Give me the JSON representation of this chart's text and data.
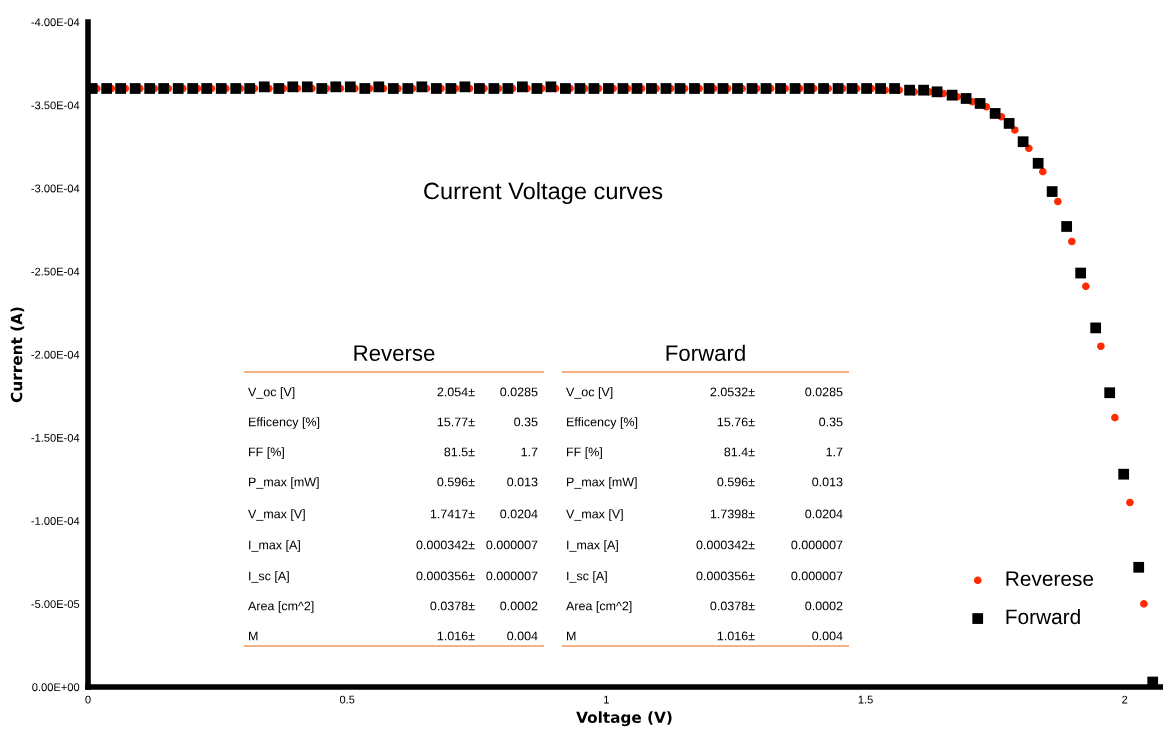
{
  "chart_data": {
    "type": "scatter",
    "title": "Current Voltage curves",
    "xlabel": "Voltage (V)",
    "ylabel": "Current (A)",
    "xlim": [
      0,
      2.07
    ],
    "xticks": [
      0,
      0.5,
      1,
      1.5,
      2
    ],
    "ylim": [
      0,
      -0.0004
    ],
    "yticks": [
      {
        "value": 0,
        "label": "0.00E+00"
      },
      {
        "value": -5e-05,
        "label": "-5.00E-05"
      },
      {
        "value": -0.0001,
        "label": "-1.00E-04"
      },
      {
        "value": -0.00015,
        "label": "-1.50E-04"
      },
      {
        "value": -0.0002,
        "label": "-2.00E-04"
      },
      {
        "value": -0.00025,
        "label": "-2.50E-04"
      },
      {
        "value": -0.0003,
        "label": "-3.00E-04"
      },
      {
        "value": -0.00035,
        "label": "-3.50E-04"
      },
      {
        "value": -0.0004,
        "label": "-4.00E-04"
      }
    ],
    "grid": false,
    "legend": "bottom right",
    "series": [
      {
        "name": "Reverese",
        "color": "#ff2a00",
        "marker": "circle",
        "x": [
          0.017,
          0.045,
          0.072,
          0.1,
          0.128,
          0.155,
          0.183,
          0.211,
          0.238,
          0.266,
          0.294,
          0.321,
          0.349,
          0.377,
          0.404,
          0.432,
          0.46,
          0.487,
          0.515,
          0.543,
          0.57,
          0.598,
          0.626,
          0.653,
          0.681,
          0.709,
          0.736,
          0.764,
          0.792,
          0.819,
          0.847,
          0.875,
          0.902,
          0.93,
          0.958,
          0.985,
          1.013,
          1.041,
          1.068,
          1.096,
          1.124,
          1.151,
          1.179,
          1.207,
          1.234,
          1.262,
          1.29,
          1.317,
          1.345,
          1.373,
          1.4,
          1.428,
          1.456,
          1.483,
          1.511,
          1.538,
          1.565,
          1.594,
          1.623,
          1.65,
          1.677,
          1.706,
          1.733,
          1.762,
          1.788,
          1.815,
          1.842,
          1.871,
          1.898,
          1.925,
          1.954,
          1.981,
          2.01,
          2.037
        ],
        "values": [
          -0.00036,
          -0.00036,
          -0.00036,
          -0.00036,
          -0.00036,
          -0.00036,
          -0.00036,
          -0.00036,
          -0.00036,
          -0.00036,
          -0.00036,
          -0.00036,
          -0.00036,
          -0.00036,
          -0.00036,
          -0.00036,
          -0.00036,
          -0.00036,
          -0.00036,
          -0.00036,
          -0.00036,
          -0.00036,
          -0.00036,
          -0.00036,
          -0.00036,
          -0.00036,
          -0.00036,
          -0.00036,
          -0.00036,
          -0.00036,
          -0.00036,
          -0.00036,
          -0.00036,
          -0.00036,
          -0.00036,
          -0.00036,
          -0.00036,
          -0.00036,
          -0.00036,
          -0.00036,
          -0.00036,
          -0.00036,
          -0.00036,
          -0.00036,
          -0.00036,
          -0.00036,
          -0.00036,
          -0.00036,
          -0.00036,
          -0.00036,
          -0.00036,
          -0.00036,
          -0.00036,
          -0.00036,
          -0.00036,
          -0.000359,
          -0.000359,
          -0.000358,
          -0.000358,
          -0.000357,
          -0.000355,
          -0.000352,
          -0.000349,
          -0.000343,
          -0.000335,
          -0.000324,
          -0.00031,
          -0.000292,
          -0.000268,
          -0.000241,
          -0.000205,
          -0.000162,
          -0.000111,
          -5e-05
        ]
      },
      {
        "name": "Forward",
        "color": "#000000",
        "marker": "square",
        "x": [
          0.008,
          0.036,
          0.063,
          0.091,
          0.119,
          0.146,
          0.174,
          0.202,
          0.229,
          0.257,
          0.285,
          0.312,
          0.34,
          0.368,
          0.395,
          0.423,
          0.451,
          0.478,
          0.506,
          0.534,
          0.561,
          0.589,
          0.617,
          0.644,
          0.672,
          0.7,
          0.727,
          0.755,
          0.783,
          0.81,
          0.838,
          0.866,
          0.893,
          0.921,
          0.949,
          0.976,
          1.004,
          1.032,
          1.059,
          1.087,
          1.115,
          1.142,
          1.17,
          1.198,
          1.225,
          1.253,
          1.281,
          1.308,
          1.336,
          1.364,
          1.391,
          1.419,
          1.447,
          1.474,
          1.502,
          1.529,
          1.556,
          1.585,
          1.612,
          1.638,
          1.667,
          1.694,
          1.721,
          1.75,
          1.777,
          1.804,
          1.833,
          1.86,
          1.888,
          1.915,
          1.944,
          1.971,
          1.998,
          2.027,
          2.054
        ],
        "values": [
          -0.00036,
          -0.00036,
          -0.00036,
          -0.00036,
          -0.00036,
          -0.00036,
          -0.00036,
          -0.00036,
          -0.00036,
          -0.00036,
          -0.00036,
          -0.00036,
          -0.000361,
          -0.00036,
          -0.000361,
          -0.000361,
          -0.00036,
          -0.000361,
          -0.000361,
          -0.00036,
          -0.000361,
          -0.00036,
          -0.00036,
          -0.000361,
          -0.00036,
          -0.00036,
          -0.000361,
          -0.00036,
          -0.00036,
          -0.00036,
          -0.000361,
          -0.00036,
          -0.000361,
          -0.00036,
          -0.00036,
          -0.00036,
          -0.00036,
          -0.00036,
          -0.00036,
          -0.00036,
          -0.00036,
          -0.00036,
          -0.00036,
          -0.00036,
          -0.00036,
          -0.00036,
          -0.00036,
          -0.00036,
          -0.00036,
          -0.00036,
          -0.00036,
          -0.00036,
          -0.00036,
          -0.00036,
          -0.00036,
          -0.00036,
          -0.00036,
          -0.000359,
          -0.000359,
          -0.000358,
          -0.000356,
          -0.000354,
          -0.000351,
          -0.000345,
          -0.000339,
          -0.000328,
          -0.000315,
          -0.000298,
          -0.000277,
          -0.000249,
          -0.000216,
          -0.000177,
          -0.000128,
          -7.2e-05,
          -3e-06
        ]
      }
    ],
    "annotations": [
      "Reverse",
      "V_oc [V]",
      "2.054±",
      "0.0285",
      "Efficency [%]",
      "15.77±",
      "0.35",
      "FF [%]",
      "81.5±",
      "1.7",
      "P_max [mW]",
      "0.596±",
      "0.013",
      "V_max [V]",
      "1.7417±",
      "0.0204",
      "I_max [A]",
      "0.000342±",
      "0.000007",
      "I_sc [A]",
      "0.000356±",
      "0.000007",
      "Area [cm^2]",
      "0.0378±",
      "0.0002",
      "M",
      "1.016±",
      "0.004",
      "Forward",
      "V_oc [V]",
      "2.0532±",
      "0.0285",
      "Efficency [%]",
      "15.76±",
      "0.35",
      "FF [%]",
      "81.4±",
      "1.7",
      "P_max [mW]",
      "0.596±",
      "0.013",
      "V_max [V]",
      "1.7398±",
      "0.0204",
      "I_max [A]",
      "0.000342±",
      "0.000007",
      "I_sc [A]",
      "0.000356±",
      "0.000007",
      "Area [cm^2]",
      "0.0378±",
      "0.0002",
      "M",
      "1.016±",
      "0.004"
    ]
  }
}
